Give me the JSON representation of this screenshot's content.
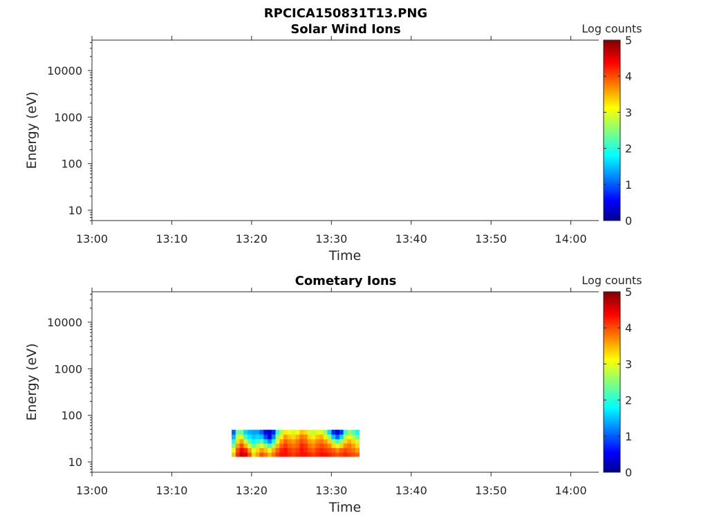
{
  "figure": {
    "title": "RPCICA150831T13.PNG"
  },
  "chart_data": [
    {
      "type": "heatmap",
      "title": "Solar Wind Ions",
      "xlabel": "Time",
      "ylabel": "Energy (eV)",
      "x_ticks": [
        "13:00",
        "13:10",
        "13:20",
        "13:30",
        "13:40",
        "13:50",
        "14:00"
      ],
      "xlim_minutes": [
        0,
        63.5
      ],
      "y_scale": "log",
      "ylim": [
        6,
        45000
      ],
      "y_ticks": [
        10,
        100,
        1000,
        10000
      ],
      "y_tick_labels": [
        "10",
        "100",
        "1000",
        "10000"
      ],
      "colorbar": {
        "label": "Log counts",
        "min": 0,
        "max": 5,
        "ticks": [
          "0",
          "1",
          "2",
          "3",
          "4",
          "5"
        ],
        "colormap": "jet"
      },
      "cells": []
    },
    {
      "type": "heatmap",
      "title": "Cometary Ions",
      "xlabel": "Time",
      "ylabel": "Energy (eV)",
      "x_ticks": [
        "13:00",
        "13:10",
        "13:20",
        "13:30",
        "13:40",
        "13:50",
        "14:00"
      ],
      "xlim_minutes": [
        0,
        63.5
      ],
      "y_scale": "log",
      "ylim": [
        6,
        45000
      ],
      "y_ticks": [
        10,
        100,
        1000,
        10000
      ],
      "y_tick_labels": [
        "10",
        "100",
        "1000",
        "10000"
      ],
      "colorbar": {
        "label": "Log counts",
        "min": 0,
        "max": 5,
        "ticks": [
          "0",
          "1",
          "2",
          "3",
          "4",
          "5"
        ],
        "colormap": "jet"
      },
      "time_minutes": [
        17.5,
        18.0,
        18.5,
        19.0,
        19.5,
        20.0,
        20.5,
        21.0,
        21.5,
        22.0,
        22.5,
        23.0,
        23.5,
        24.0,
        24.5,
        25.0,
        25.5,
        26.0,
        26.5,
        27.0,
        27.5,
        28.0,
        28.5,
        29.0,
        29.5,
        30.0,
        30.5,
        31.0,
        31.5,
        32.0,
        32.5,
        33.0
      ],
      "time_step_minutes": 0.5,
      "energy_bins_eV": [
        [
          13,
          16
        ],
        [
          16,
          20
        ],
        [
          20,
          25
        ],
        [
          25,
          31
        ],
        [
          31,
          39
        ],
        [
          39,
          49
        ]
      ],
      "log_counts": [
        [
          3.4,
          4.2,
          4.6,
          4.5,
          4.0,
          3.3,
          3.6,
          4.0,
          3.8,
          3.5,
          3.8,
          4.1,
          4.3,
          4.3,
          4.2,
          4.1,
          4.2,
          4.3,
          4.3,
          4.2,
          4.1,
          4.2,
          4.3,
          4.3,
          4.2,
          4.1,
          4.0,
          4.1,
          4.2,
          4.1,
          4.0,
          3.9
        ],
        [
          3.1,
          4.0,
          4.4,
          4.2,
          3.6,
          3.0,
          3.3,
          3.6,
          3.4,
          3.1,
          3.5,
          3.9,
          4.2,
          4.3,
          4.1,
          4.0,
          4.1,
          4.3,
          4.2,
          4.0,
          3.9,
          4.1,
          4.2,
          4.1,
          4.0,
          3.9,
          3.7,
          3.9,
          4.0,
          3.9,
          3.8,
          3.6
        ],
        [
          2.5,
          3.6,
          4.0,
          3.5,
          2.9,
          2.4,
          2.7,
          3.0,
          2.6,
          2.2,
          2.7,
          3.5,
          3.9,
          4.1,
          3.9,
          3.8,
          3.9,
          4.2,
          4.1,
          3.8,
          3.7,
          3.9,
          4.0,
          3.9,
          3.7,
          3.3,
          3.0,
          3.3,
          3.7,
          3.8,
          3.6,
          3.3
        ],
        [
          2.0,
          3.3,
          3.6,
          2.9,
          2.3,
          1.9,
          2.1,
          2.3,
          1.7,
          1.3,
          1.9,
          3.1,
          3.6,
          3.9,
          3.7,
          3.6,
          3.8,
          4.0,
          3.9,
          3.6,
          3.5,
          3.7,
          3.8,
          3.6,
          3.3,
          2.6,
          2.2,
          2.6,
          3.3,
          3.5,
          3.3,
          2.9
        ],
        [
          1.5,
          2.9,
          3.0,
          2.2,
          1.8,
          1.6,
          1.7,
          1.6,
          1.0,
          0.6,
          1.3,
          2.6,
          3.2,
          3.6,
          3.4,
          3.3,
          3.5,
          3.8,
          3.7,
          3.3,
          3.2,
          3.4,
          3.5,
          3.2,
          2.6,
          1.6,
          1.1,
          1.7,
          2.8,
          3.1,
          2.8,
          2.4
        ],
        [
          1.1,
          2.4,
          2.4,
          1.7,
          1.5,
          1.4,
          1.4,
          1.1,
          0.5,
          0.3,
          0.8,
          2.1,
          2.7,
          3.2,
          3.1,
          2.9,
          3.1,
          3.4,
          3.3,
          2.9,
          2.8,
          3.0,
          3.0,
          2.6,
          1.7,
          0.8,
          0.4,
          0.9,
          2.1,
          2.6,
          2.3,
          1.9
        ]
      ]
    }
  ]
}
